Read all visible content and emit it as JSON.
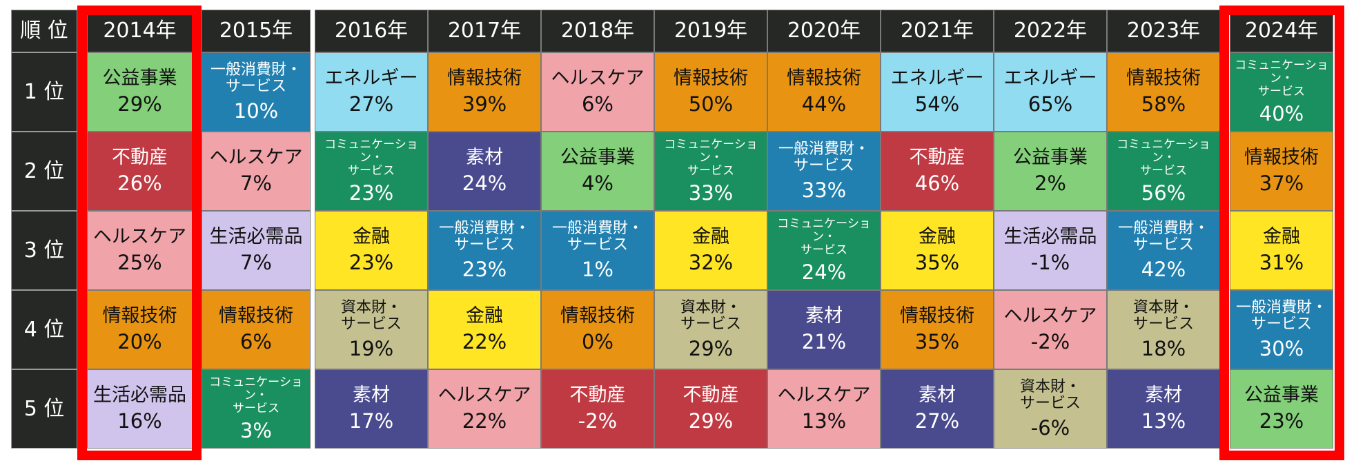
{
  "header": {
    "rank_label": "順 位"
  },
  "rank_labels": [
    "1 位",
    "2 位",
    "3 位",
    "4 位",
    "5 位"
  ],
  "highlighted_years": [
    "2014年",
    "2024年"
  ],
  "highlight_color": "#ff0000",
  "sectors": {
    "util": {
      "lines": [
        "公益事業"
      ],
      "bg": "#84d07a",
      "fg": "#111111"
    },
    "cd": {
      "lines": [
        "一般消費財・",
        "サービス"
      ],
      "bg": "#2280b0",
      "fg": "#ffffff"
    },
    "en": {
      "lines": [
        "エネルギー"
      ],
      "bg": "#91dcf0",
      "fg": "#111111"
    },
    "it": {
      "lines": [
        "情報技術"
      ],
      "bg": "#e89412",
      "fg": "#111111"
    },
    "hc": {
      "lines": [
        "ヘルスケア"
      ],
      "bg": "#f0a3a8",
      "fg": "#111111"
    },
    "re": {
      "lines": [
        "不動産"
      ],
      "bg": "#c03a43",
      "fg": "#ffffff"
    },
    "comm": {
      "lines": [
        "コミュニケーション・",
        "サービス"
      ],
      "bg": "#1a8f5f",
      "fg": "#ffffff"
    },
    "mat": {
      "lines": [
        "素材"
      ],
      "bg": "#4a4a8e",
      "fg": "#ffffff"
    },
    "fin": {
      "lines": [
        "金融"
      ],
      "bg": "#ffe524",
      "fg": "#111111"
    },
    "cs": {
      "lines": [
        "生活必需品"
      ],
      "bg": "#d0c4ec",
      "fg": "#111111"
    },
    "ind": {
      "lines": [
        "資本財・",
        "サービス"
      ],
      "bg": "#c4c090",
      "fg": "#111111"
    }
  },
  "columns": [
    {
      "year": "2014年",
      "cells": [
        [
          "util",
          "29%"
        ],
        [
          "re",
          "26%"
        ],
        [
          "hc",
          "25%"
        ],
        [
          "it",
          "20%"
        ],
        [
          "cs",
          "16%"
        ]
      ]
    },
    {
      "year": "2015年",
      "cells": [
        [
          "cd",
          "10%"
        ],
        [
          "hc",
          "7%"
        ],
        [
          "cs",
          "7%"
        ],
        [
          "it",
          "6%"
        ],
        [
          "comm",
          "3%"
        ]
      ]
    },
    {
      "year": "2016年",
      "cells": [
        [
          "en",
          "27%"
        ],
        [
          "comm",
          "23%"
        ],
        [
          "fin",
          "23%"
        ],
        [
          "ind",
          "19%"
        ],
        [
          "mat",
          "17%"
        ]
      ]
    },
    {
      "year": "2017年",
      "cells": [
        [
          "it",
          "39%"
        ],
        [
          "mat",
          "24%"
        ],
        [
          "cd",
          "23%"
        ],
        [
          "fin",
          "22%"
        ],
        [
          "hc",
          "22%"
        ]
      ]
    },
    {
      "year": "2018年",
      "cells": [
        [
          "hc",
          "6%"
        ],
        [
          "util",
          "4%"
        ],
        [
          "cd",
          "1%"
        ],
        [
          "it",
          "0%"
        ],
        [
          "re",
          "-2%"
        ]
      ]
    },
    {
      "year": "2019年",
      "cells": [
        [
          "it",
          "50%"
        ],
        [
          "comm",
          "33%"
        ],
        [
          "fin",
          "32%"
        ],
        [
          "ind",
          "29%"
        ],
        [
          "re",
          "29%"
        ]
      ]
    },
    {
      "year": "2020年",
      "cells": [
        [
          "it",
          "44%"
        ],
        [
          "cd",
          "33%"
        ],
        [
          "comm",
          "24%"
        ],
        [
          "mat",
          "21%"
        ],
        [
          "hc",
          "13%"
        ]
      ]
    },
    {
      "year": "2021年",
      "cells": [
        [
          "en",
          "54%"
        ],
        [
          "re",
          "46%"
        ],
        [
          "fin",
          "35%"
        ],
        [
          "it",
          "35%"
        ],
        [
          "mat",
          "27%"
        ]
      ]
    },
    {
      "year": "2022年",
      "cells": [
        [
          "en",
          "65%"
        ],
        [
          "util",
          "2%"
        ],
        [
          "cs",
          "-1%"
        ],
        [
          "hc",
          "-2%"
        ],
        [
          "ind",
          "-6%"
        ]
      ]
    },
    {
      "year": "2023年",
      "cells": [
        [
          "it",
          "58%"
        ],
        [
          "comm",
          "56%"
        ],
        [
          "cd",
          "42%"
        ],
        [
          "ind",
          "18%"
        ],
        [
          "mat",
          "13%"
        ]
      ]
    },
    {
      "year": "2024年",
      "cells": [
        [
          "comm",
          "40%"
        ],
        [
          "it",
          "37%"
        ],
        [
          "fin",
          "31%"
        ],
        [
          "cd",
          "30%"
        ],
        [
          "util",
          "23%"
        ]
      ]
    }
  ]
}
